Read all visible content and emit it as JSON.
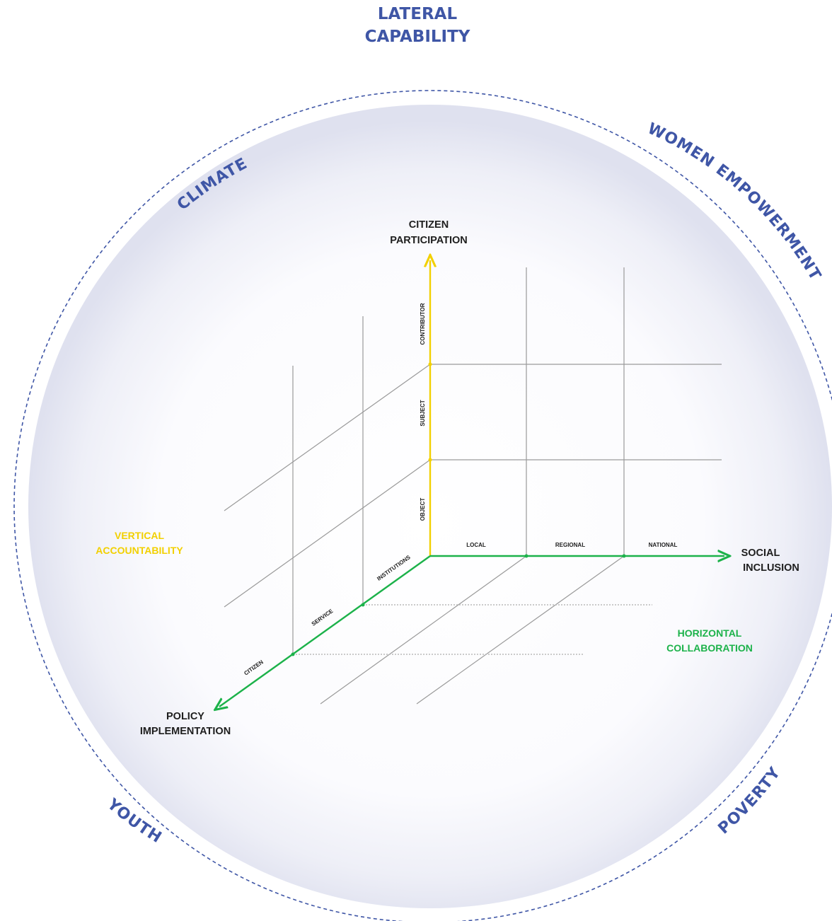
{
  "title": {
    "line1": "LATERAL",
    "line2": "CAPABILITY"
  },
  "ring_labels": {
    "climate": "CLIMATE",
    "women_empowerment": "WOMEN EMPOWERMENT",
    "poverty": "POVERTY",
    "youth": "YOUTH"
  },
  "axes": {
    "vertical": {
      "line1": "CITIZEN",
      "line2": "PARTICIPATION"
    },
    "horizontal": {
      "line1": "SOCIAL",
      "line2": "INCLUSION"
    },
    "depth": {
      "line1": "POLICY",
      "line2": "IMPLEMENTATION"
    }
  },
  "dimension_labels": {
    "vertical_accountability": {
      "line1": "VERTICAL",
      "line2": "ACCOUNTABILITY"
    },
    "horizontal_collaboration": {
      "line1": "HORIZONTAL",
      "line2": "COLLABORATION"
    }
  },
  "ticks": {
    "vertical": [
      "OBJECT",
      "SUBJECT",
      "CONTRIBUTOR"
    ],
    "horizontal": [
      "LOCAL",
      "REGIONAL",
      "NATIONAL"
    ],
    "depth": [
      "INSTITUTIONS",
      "SERVICE",
      "CITIZEN"
    ]
  },
  "colors": {
    "ring": "#3f56a6",
    "vertical_axis": "#f2d000",
    "horizontal_axis": "#1cb24a",
    "depth_axis": "#1cb24a",
    "grid": "#9a9a9a"
  }
}
